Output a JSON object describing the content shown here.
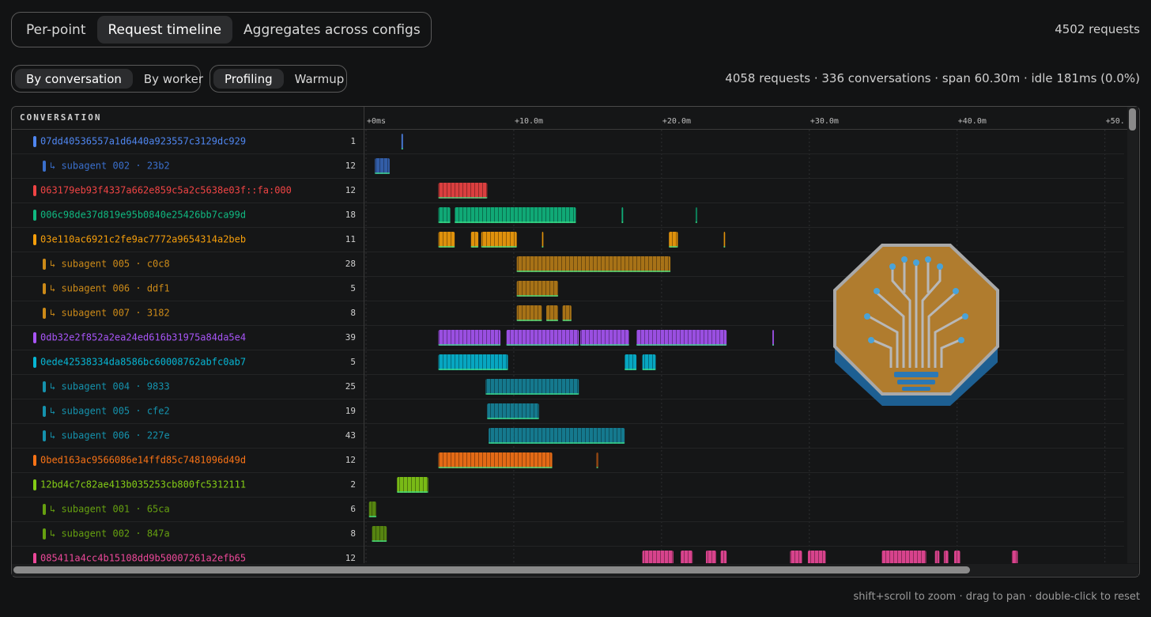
{
  "tabs": [
    "Per-point",
    "Request timeline",
    "Aggregates across configs"
  ],
  "active_tab": 1,
  "total": "4502 requests",
  "group_by": [
    "By conversation",
    "By worker"
  ],
  "active_group": 0,
  "phase": [
    "Profiling",
    "Warmup"
  ],
  "active_phase": 0,
  "summary": "4058 requests · 336 conversations · span 60.30m · idle 181ms (0.0%)",
  "timeline": {
    "column_header": "CONVERSATION",
    "xlim": [
      0,
      51.3
    ],
    "xticks": [
      {
        "value": 0,
        "label": "+0ms"
      },
      {
        "value": 10,
        "label": "+10.0m"
      },
      {
        "value": 20,
        "label": "+20.0m"
      },
      {
        "value": 30,
        "label": "+30.0m"
      },
      {
        "value": 40,
        "label": "+40.0m"
      },
      {
        "value": 50,
        "label": "+50."
      }
    ],
    "rows": [
      {
        "label": "07dd40536557a1d6440a923557c3129dc929",
        "count": 1,
        "color": "#4f86f0",
        "segments": [
          [
            2.4,
            2.5
          ]
        ]
      },
      {
        "label": "↳ subagent 002 · 23b2",
        "count": 12,
        "color": "#3a6fcc",
        "segments": [
          [
            0.6,
            1.6
          ]
        ]
      },
      {
        "label": "063179eb93f4337a662e859c5a2c5638e03f::fa:000",
        "count": 12,
        "color": "#ef4444",
        "segments": [
          [
            4.9,
            8.2
          ]
        ]
      },
      {
        "label": "006c98de37d819e95b0840e25426bb7ca99d",
        "count": 18,
        "color": "#10b981",
        "segments": [
          [
            4.9,
            5.7
          ],
          [
            6.0,
            14.2
          ],
          [
            17.3,
            17.4
          ],
          [
            22.3,
            22.4
          ]
        ]
      },
      {
        "label": "03e110ac6921c2fe9ac7772a9654314a2beb",
        "count": 11,
        "color": "#f59e0b",
        "segments": [
          [
            4.9,
            6.0
          ],
          [
            7.1,
            7.6
          ],
          [
            7.8,
            10.2
          ],
          [
            11.9,
            12.0
          ],
          [
            20.5,
            21.1
          ],
          [
            24.2,
            24.3
          ]
        ]
      },
      {
        "label": "↳ subagent 005 · c0c8",
        "count": 28,
        "color": "#cc8a18",
        "segments": [
          [
            10.2,
            20.6
          ]
        ]
      },
      {
        "label": "↳ subagent 006 · ddf1",
        "count": 5,
        "color": "#cc8a18",
        "segments": [
          [
            10.2,
            13.0
          ]
        ]
      },
      {
        "label": "↳ subagent 007 · 3182",
        "count": 8,
        "color": "#cc8a18",
        "segments": [
          [
            10.2,
            11.9
          ],
          [
            12.2,
            13.0
          ],
          [
            13.3,
            13.9
          ]
        ]
      },
      {
        "label": "0db32e2f852a2ea24ed616b31975a84da5e4",
        "count": 39,
        "color": "#a855f7",
        "segments": [
          [
            4.9,
            9.1
          ],
          [
            9.5,
            14.4
          ],
          [
            14.5,
            17.8
          ],
          [
            18.3,
            24.4
          ],
          [
            27.5,
            27.6
          ]
        ]
      },
      {
        "label": "0ede42538334da8586bc60008762abfc0ab7",
        "count": 5,
        "color": "#06b6d4",
        "segments": [
          [
            4.9,
            9.6
          ],
          [
            17.5,
            18.3
          ],
          [
            18.7,
            19.6
          ]
        ]
      },
      {
        "label": "↳ subagent 004 · 9833",
        "count": 25,
        "color": "#1592ad",
        "segments": [
          [
            8.1,
            14.4
          ]
        ]
      },
      {
        "label": "↳ subagent 005 · cfe2",
        "count": 19,
        "color": "#1592ad",
        "segments": [
          [
            8.2,
            11.7
          ]
        ]
      },
      {
        "label": "↳ subagent 006 · 227e",
        "count": 43,
        "color": "#1592ad",
        "segments": [
          [
            8.3,
            17.5
          ]
        ]
      },
      {
        "label": "0bed163ac9566086e14ffd85c7481096d49d",
        "count": 12,
        "color": "#f97316",
        "segments": [
          [
            4.9,
            12.6
          ],
          [
            15.6,
            15.7
          ]
        ]
      },
      {
        "label": "12bd4c7c82ae413b035253cb800fc5312111",
        "count": 2,
        "color": "#84cc16",
        "segments": [
          [
            2.1,
            4.2
          ]
        ]
      },
      {
        "label": "↳ subagent 001 · 65ca",
        "count": 6,
        "color": "#66a010",
        "segments": [
          [
            0.2,
            0.7
          ]
        ]
      },
      {
        "label": "↳ subagent 002 · 847a",
        "count": 8,
        "color": "#66a010",
        "segments": [
          [
            0.4,
            1.4
          ]
        ]
      },
      {
        "label": "085411a4cc4b15108dd9b50007261a2efb65",
        "count": 12,
        "color": "#ec4899",
        "segments": [
          [
            18.7,
            20.8
          ],
          [
            21.3,
            22.1
          ],
          [
            23.0,
            23.7
          ],
          [
            24.0,
            24.4
          ],
          [
            28.7,
            29.5
          ],
          [
            29.9,
            31.1
          ],
          [
            34.9,
            37.9
          ],
          [
            38.5,
            38.8
          ],
          [
            39.1,
            39.4
          ],
          [
            39.8,
            40.2
          ],
          [
            43.7,
            44.1
          ]
        ]
      }
    ]
  },
  "hint": "shift+scroll to zoom · drag to pan · double-click to reset"
}
